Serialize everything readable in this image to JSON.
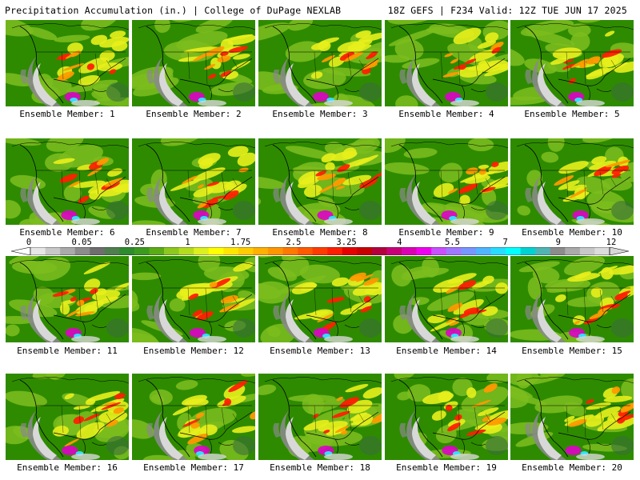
{
  "header": {
    "title": "Precipitation Accumulation (in.) | College of DuPage NEXLAB",
    "run_info": "18Z GEFS | F234 Valid: 12Z TUE JUN 17 2025"
  },
  "members": [
    "Ensemble Member: 1",
    "Ensemble Member: 2",
    "Ensemble Member: 3",
    "Ensemble Member: 4",
    "Ensemble Member: 5",
    "Ensemble Member: 6",
    "Ensemble Member: 7",
    "Ensemble Member: 8",
    "Ensemble Member: 9",
    "Ensemble Member: 10",
    "Ensemble Member: 11",
    "Ensemble Member: 12",
    "Ensemble Member: 13",
    "Ensemble Member: 14",
    "Ensemble Member: 15",
    "Ensemble Member: 16",
    "Ensemble Member: 17",
    "Ensemble Member: 18",
    "Ensemble Member: 19",
    "Ensemble Member: 20"
  ],
  "colorbar": {
    "ticks": [
      "0",
      "0.05",
      "0.25",
      "1",
      "1.75",
      "2.5",
      "3.25",
      "4",
      "5.5",
      "7",
      "9",
      "12"
    ],
    "colors": [
      "#e6e6e6",
      "#c8c8c8",
      "#aaaaaa",
      "#8c8c8c",
      "#6e6e6e",
      "#4f7f4f",
      "#2e8b2e",
      "#3c9a1e",
      "#5aac14",
      "#8cc81e",
      "#b4dc1e",
      "#dcf01e",
      "#ffff00",
      "#ffe600",
      "#ffcc00",
      "#ffb000",
      "#ff9600",
      "#ff7800",
      "#ff5a00",
      "#ff3c00",
      "#ff1e00",
      "#e60000",
      "#c80000",
      "#b4003c",
      "#c80078",
      "#dc00b4",
      "#f000f0",
      "#c850ff",
      "#a078ff",
      "#7896ff",
      "#50b4ff",
      "#28dcff",
      "#00ffff",
      "#00d2d2",
      "#50b4b4",
      "#8c8c8c",
      "#aaaaaa",
      "#c8c8c8",
      "#dcdcdc"
    ]
  },
  "map_colors": {
    "base_green": "#2e8b00",
    "light_green": "#7dbd1e",
    "yellow": "#e8f01c",
    "orange": "#ff9a00",
    "red": "#ff2000",
    "magenta": "#e000c8",
    "cyan": "#30e0ff",
    "gray": "#8a8a8a",
    "light_gray": "#d8d8d8",
    "dark_green": "#3a6e3a",
    "borders": "#000000"
  }
}
